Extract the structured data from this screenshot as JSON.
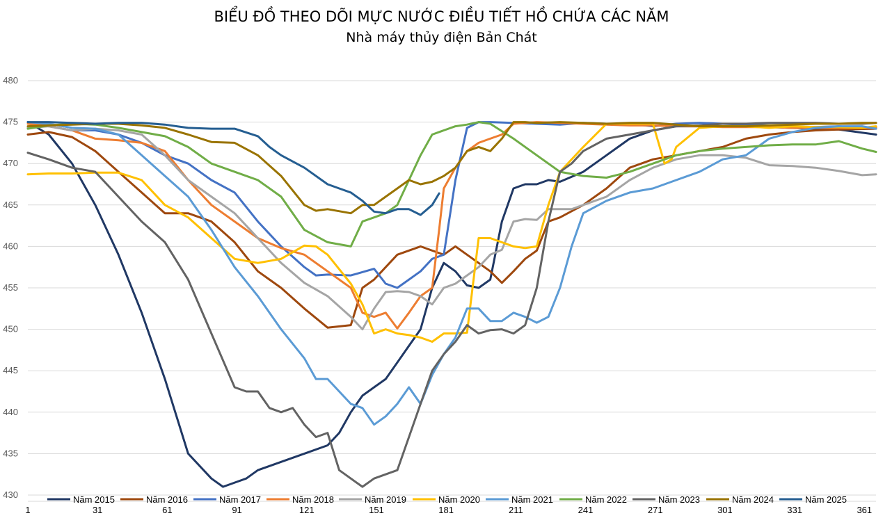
{
  "chart_data": {
    "type": "line",
    "title": "BIỂU ĐỒ THEO DÕI MỰC NƯỚC ĐIỀU TIẾT HỒ CHỨA CÁC NĂM",
    "subtitle": "Nhà máy thủy điện Bản Chát",
    "xlabel": "",
    "ylabel": "",
    "ylim": [
      430,
      480
    ],
    "xlim": [
      1,
      366
    ],
    "yticks": [
      430,
      435,
      440,
      445,
      450,
      455,
      460,
      465,
      470,
      475,
      480
    ],
    "xticks": [
      1,
      31,
      61,
      91,
      121,
      151,
      181,
      211,
      241,
      271,
      301,
      331,
      361
    ],
    "grid": true,
    "legend_position": "bottom",
    "series": [
      {
        "name": "Năm 2015",
        "color": "#203864",
        "x": [
          1,
          10,
          20,
          30,
          40,
          50,
          60,
          70,
          80,
          85,
          90,
          95,
          100,
          110,
          120,
          130,
          135,
          140,
          145,
          150,
          155,
          160,
          165,
          170,
          175,
          180,
          185,
          190,
          195,
          200,
          205,
          210,
          215,
          220,
          225,
          230,
          240,
          250,
          260,
          270,
          280,
          290,
          300,
          310,
          320,
          330,
          340,
          350,
          366
        ],
        "y": [
          475,
          473.5,
          470,
          465,
          459,
          452,
          444,
          435,
          432,
          431,
          431.5,
          432,
          433,
          434,
          435,
          436,
          437.5,
          440,
          442,
          443,
          444,
          446,
          448,
          450,
          455,
          458,
          457,
          455.3,
          455,
          456,
          463,
          467,
          467.5,
          467.5,
          468,
          467.8,
          469,
          471,
          473,
          474,
          474.5,
          474.5,
          474.5,
          474.5,
          474.4,
          474.3,
          474.2,
          474.1,
          473.5
        ]
      },
      {
        "name": "Năm 2016",
        "color": "#9E480E",
        "x": [
          1,
          10,
          20,
          30,
          40,
          50,
          60,
          70,
          80,
          90,
          100,
          110,
          120,
          130,
          140,
          145,
          150,
          155,
          160,
          170,
          175,
          180,
          185,
          190,
          200,
          205,
          210,
          215,
          220,
          225,
          230,
          240,
          250,
          260,
          270,
          280,
          290,
          300,
          310,
          320,
          330,
          340,
          350,
          366
        ],
        "y": [
          473.5,
          473.8,
          473.2,
          471.5,
          469,
          466.5,
          464,
          464,
          463,
          460.5,
          457,
          455,
          452.5,
          450.2,
          450.5,
          455,
          456,
          457.5,
          459,
          460,
          459.5,
          459,
          460,
          459,
          457,
          455.6,
          457,
          458.5,
          459.5,
          463,
          463.5,
          465,
          467,
          469.5,
          470.5,
          471,
          471.5,
          472,
          473,
          473.5,
          473.8,
          474,
          474.1,
          474.2
        ]
      },
      {
        "name": "Năm 2017",
        "color": "#4472C4",
        "x": [
          1,
          10,
          20,
          30,
          40,
          50,
          60,
          70,
          80,
          90,
          100,
          110,
          120,
          125,
          130,
          140,
          150,
          155,
          160,
          165,
          170,
          175,
          180,
          185,
          190,
          195,
          200,
          210,
          220,
          230,
          240,
          250,
          260,
          270,
          280,
          290,
          300,
          310,
          320,
          330,
          340,
          350,
          360,
          366
        ],
        "y": [
          475,
          474.5,
          474,
          474,
          473.5,
          472.5,
          471,
          470,
          468,
          466.5,
          463,
          460,
          457.5,
          456.5,
          456.6,
          456.5,
          457.3,
          455.5,
          455,
          456,
          457,
          458.5,
          459,
          468,
          474.3,
          475,
          475,
          474.9,
          474.8,
          474.7,
          474.9,
          474.8,
          474.8,
          474.5,
          474.8,
          474.9,
          474.8,
          474.7,
          474.6,
          474.5,
          474.4,
          474.5,
          474.3,
          474.4
        ]
      },
      {
        "name": "Năm 2018",
        "color": "#ED7D31",
        "x": [
          1,
          10,
          20,
          30,
          40,
          50,
          60,
          70,
          80,
          90,
          100,
          110,
          120,
          130,
          140,
          145,
          150,
          155,
          160,
          165,
          170,
          175,
          178,
          180,
          185,
          190,
          195,
          200,
          205,
          210,
          215,
          220,
          230,
          240,
          250,
          260,
          270,
          280,
          290,
          300,
          310,
          320,
          330,
          340,
          350,
          366
        ],
        "y": [
          474.8,
          474.5,
          474,
          473,
          472.8,
          472.5,
          471.5,
          468,
          465,
          463,
          461,
          459.8,
          459,
          457,
          455,
          452,
          451.5,
          452,
          450.1,
          452,
          454,
          455,
          462,
          467,
          469.5,
          471.5,
          472.5,
          473,
          473.5,
          474.8,
          474.9,
          475,
          474.9,
          474.8,
          474.7,
          474.6,
          474.6,
          474.5,
          474.5,
          474.4,
          474.4,
          474.4,
          474.3,
          474.3,
          474.3,
          474.3
        ]
      },
      {
        "name": "Năm 2019",
        "color": "#A5A5A5",
        "x": [
          1,
          10,
          20,
          30,
          40,
          50,
          60,
          70,
          80,
          90,
          100,
          110,
          120,
          130,
          140,
          145,
          150,
          155,
          160,
          165,
          170,
          175,
          180,
          185,
          190,
          195,
          200,
          205,
          210,
          215,
          220,
          225,
          230,
          235,
          240,
          250,
          260,
          270,
          280,
          290,
          300,
          310,
          320,
          330,
          340,
          350,
          360,
          366
        ],
        "y": [
          474.3,
          474.5,
          474,
          474.2,
          474,
          473.5,
          471,
          468,
          466,
          464,
          461,
          458,
          455.6,
          454,
          451.5,
          450,
          452.5,
          454.5,
          454.6,
          454.5,
          454,
          453,
          455,
          455.5,
          456.5,
          457.5,
          459,
          459.6,
          463,
          463.3,
          463.2,
          464.5,
          464.5,
          464.5,
          465,
          466,
          468,
          469.5,
          470.5,
          471,
          471,
          470.7,
          469.8,
          469.7,
          469.5,
          469.1,
          468.6,
          468.7
        ]
      },
      {
        "name": "Năm 2020",
        "color": "#FFC000",
        "x": [
          1,
          10,
          20,
          30,
          40,
          50,
          60,
          70,
          80,
          90,
          100,
          110,
          120,
          125,
          130,
          140,
          145,
          150,
          155,
          160,
          165,
          170,
          175,
          180,
          185,
          190,
          195,
          200,
          210,
          215,
          220,
          225,
          230,
          240,
          250,
          260,
          270,
          275,
          278,
          280,
          290,
          300,
          310,
          320,
          330,
          340,
          350,
          360,
          366
        ],
        "y": [
          468.7,
          468.8,
          468.8,
          468.9,
          468.9,
          468,
          465,
          463.5,
          461,
          458.5,
          458,
          458.5,
          460.1,
          460,
          459,
          455.5,
          453,
          449.5,
          450,
          449.5,
          449.3,
          449,
          448.5,
          449.5,
          449.5,
          449.6,
          461,
          461,
          460,
          459.8,
          460,
          465,
          469,
          472,
          474.8,
          474.8,
          474.8,
          470,
          470.5,
          472,
          474.3,
          474.5,
          474.5,
          474.3,
          474.5,
          474.4,
          474.4,
          474.3,
          474.5
        ]
      },
      {
        "name": "Năm 2021",
        "color": "#5B9BD5",
        "x": [
          1,
          10,
          20,
          30,
          40,
          50,
          60,
          70,
          80,
          90,
          100,
          110,
          120,
          125,
          130,
          140,
          145,
          150,
          155,
          160,
          165,
          170,
          175,
          180,
          185,
          190,
          195,
          200,
          205,
          210,
          215,
          220,
          225,
          230,
          235,
          240,
          250,
          260,
          270,
          280,
          290,
          300,
          310,
          320,
          330,
          340,
          350,
          360,
          366
        ],
        "y": [
          475,
          474.8,
          474.3,
          474.2,
          473.5,
          471,
          468.5,
          466,
          462,
          457.5,
          454,
          450,
          446.5,
          444,
          444,
          441,
          440.5,
          438.5,
          439.5,
          441,
          443,
          441,
          444.5,
          447,
          449,
          452.5,
          452.5,
          451,
          451,
          452,
          451.5,
          450.8,
          451.5,
          455,
          460,
          464,
          465.5,
          466.5,
          467,
          468,
          469,
          470.5,
          471,
          473,
          473.8,
          474.3,
          474.5,
          474.5,
          474.2
        ]
      },
      {
        "name": "Năm 2022",
        "color": "#70AD47",
        "x": [
          1,
          10,
          20,
          30,
          40,
          50,
          60,
          70,
          80,
          90,
          100,
          110,
          120,
          130,
          140,
          145,
          150,
          155,
          160,
          165,
          170,
          175,
          180,
          185,
          190,
          195,
          200,
          210,
          220,
          230,
          240,
          250,
          260,
          270,
          280,
          290,
          300,
          310,
          320,
          330,
          340,
          350,
          360,
          366
        ],
        "y": [
          474.2,
          474.6,
          474.8,
          474.7,
          474.3,
          473.8,
          473.3,
          472,
          470,
          469,
          468,
          466,
          462,
          460.5,
          460,
          463,
          463.5,
          464,
          465,
          468,
          471,
          473.5,
          474,
          474.5,
          474.7,
          475,
          474.8,
          473,
          471,
          469,
          468.5,
          468.3,
          469,
          470,
          471,
          471.5,
          471.8,
          472,
          472.2,
          472.3,
          472.3,
          472.7,
          471.8,
          471.4
        ]
      },
      {
        "name": "Năm 2023",
        "color": "#636363",
        "x": [
          1,
          10,
          20,
          30,
          40,
          50,
          60,
          70,
          80,
          90,
          95,
          100,
          105,
          110,
          115,
          120,
          125,
          130,
          135,
          140,
          145,
          150,
          155,
          160,
          165,
          170,
          175,
          180,
          185,
          190,
          195,
          200,
          205,
          210,
          215,
          220,
          225,
          230,
          235,
          240,
          250,
          260,
          270,
          280,
          290,
          300,
          310,
          320,
          330,
          340,
          350,
          360,
          366
        ],
        "y": [
          471.3,
          470.5,
          469.5,
          469,
          466,
          463,
          460.5,
          456,
          449.5,
          443,
          442.5,
          442.5,
          440.5,
          440,
          440.5,
          438.5,
          437,
          437.5,
          433,
          432,
          431,
          432,
          432.5,
          433,
          437,
          441,
          445,
          447,
          448.5,
          450.5,
          449.5,
          449.9,
          450,
          449.5,
          450.5,
          455,
          463,
          469,
          470,
          471.5,
          473,
          473.5,
          474,
          474.5,
          474.6,
          474.8,
          474.8,
          474.9,
          474.9,
          474.9,
          474.8,
          474.8,
          474.9
        ]
      },
      {
        "name": "Năm 2024",
        "color": "#997300",
        "x": [
          1,
          10,
          20,
          30,
          40,
          50,
          60,
          70,
          80,
          90,
          100,
          110,
          120,
          125,
          130,
          140,
          145,
          150,
          155,
          160,
          165,
          170,
          175,
          180,
          185,
          190,
          195,
          200,
          205,
          210,
          215,
          220,
          230,
          240,
          250,
          260,
          270,
          280,
          290,
          300,
          310,
          320,
          330,
          340,
          350,
          360,
          366
        ],
        "y": [
          474.5,
          474.6,
          474.7,
          474.8,
          474.8,
          474.6,
          474.3,
          473.5,
          472.6,
          472.5,
          471,
          468.5,
          465,
          464.3,
          464.5,
          464,
          465,
          465,
          466,
          467,
          468,
          467.5,
          467.8,
          468.5,
          469.5,
          471.5,
          472,
          471.5,
          473,
          475,
          475,
          474.9,
          475,
          474.9,
          474.8,
          474.9,
          474.9,
          474.7,
          474.5,
          474.5,
          474.5,
          474.6,
          474.7,
          474.8,
          474.8,
          474.9,
          474.9
        ]
      },
      {
        "name": "Năm 2025",
        "color": "#255E91",
        "x": [
          1,
          10,
          20,
          30,
          40,
          50,
          60,
          70,
          80,
          90,
          100,
          105,
          110,
          120,
          130,
          135,
          140,
          145,
          150,
          155,
          160,
          165,
          170,
          175,
          178
        ],
        "y": [
          475,
          475,
          474.9,
          474.8,
          474.9,
          474.9,
          474.7,
          474.3,
          474.2,
          474.2,
          473.3,
          472,
          471,
          469.5,
          467.5,
          467,
          466.5,
          465.5,
          464.2,
          464,
          464.5,
          464.5,
          463.8,
          465,
          466.4
        ]
      }
    ]
  }
}
